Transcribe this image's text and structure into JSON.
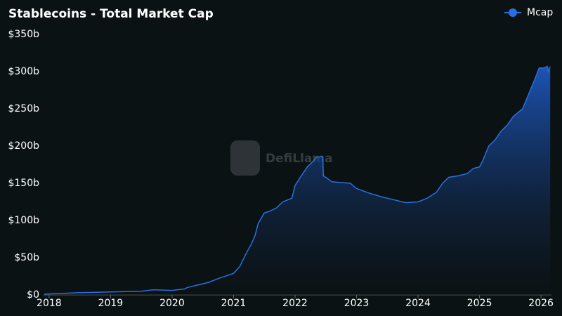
{
  "chart_data": {
    "type": "area",
    "title": "Stablecoins - Total Market Cap",
    "watermark": "DefiLlama",
    "x": [
      2017.92,
      2018.5,
      2019.0,
      2019.5,
      2019.7,
      2020.0,
      2020.2,
      2020.25,
      2020.5,
      2020.6,
      2020.75,
      2021.0,
      2021.1,
      2021.2,
      2021.3,
      2021.35,
      2021.4,
      2021.5,
      2021.6,
      2021.7,
      2021.8,
      2021.95,
      2022.0,
      2022.1,
      2022.2,
      2022.3,
      2022.35,
      2022.45,
      2022.46,
      2022.5,
      2022.6,
      2022.9,
      2023.0,
      2023.2,
      2023.4,
      2023.6,
      2023.8,
      2024.0,
      2024.15,
      2024.3,
      2024.4,
      2024.5,
      2024.65,
      2024.8,
      2024.9,
      2025.0,
      2025.05,
      2025.15,
      2025.25,
      2025.35,
      2025.45,
      2025.55,
      2025.7,
      2025.8,
      2025.9,
      2025.97,
      2026.05,
      2026.1,
      2026.12,
      2026.15
    ],
    "series": [
      {
        "name": "Mcap",
        "color": "#2a6fe0",
        "values": [
          1,
          3,
          4,
          5,
          7,
          6,
          8,
          10,
          15,
          17,
          22,
          29,
          38,
          55,
          70,
          80,
          96,
          110,
          113,
          117,
          125,
          130,
          147,
          160,
          172,
          180,
          185,
          186,
          160,
          158,
          152,
          150,
          143,
          137,
          132,
          128,
          124,
          125,
          130,
          138,
          150,
          158,
          160,
          163,
          170,
          172,
          180,
          200,
          208,
          220,
          228,
          240,
          250,
          270,
          290,
          305,
          305,
          307,
          300,
          307
        ]
      }
    ],
    "xlim": [
      2017.91,
      2026.17
    ],
    "xticks": [
      2018,
      2019,
      2020,
      2021,
      2022,
      2023,
      2024,
      2025,
      2026
    ],
    "ylim": [
      0,
      350
    ],
    "yticks": [
      {
        "value": 0,
        "label": "$0"
      },
      {
        "value": 50,
        "label": "$50b"
      },
      {
        "value": 100,
        "label": "$100b"
      },
      {
        "value": 150,
        "label": "$150b"
      },
      {
        "value": 200,
        "label": "$200b"
      },
      {
        "value": 250,
        "label": "$250b"
      },
      {
        "value": 300,
        "label": "$300b"
      },
      {
        "value": 350,
        "label": "$350b"
      }
    ],
    "grid": false,
    "legend": "top-right"
  }
}
